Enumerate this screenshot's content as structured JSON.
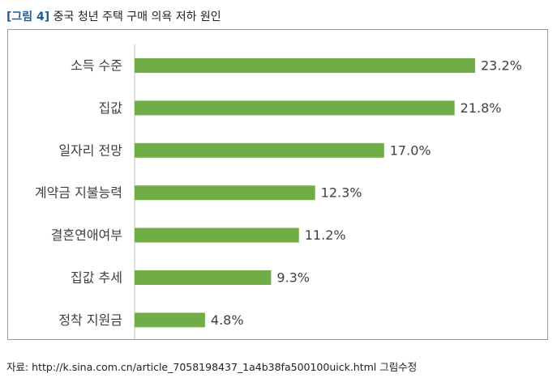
{
  "header": {
    "figure_prefix": "[그림 4]",
    "title": "중국 청년 주택 구매 의욕 저하 원인"
  },
  "source": {
    "text": "자료:  http://k.sina.com.cn/article_7058198437_1a4b38fa500100uick.html  그림수정"
  },
  "colors": {
    "bar": "#70ad47",
    "title_prefix": "#1f5c99",
    "frame": "#9a9a9a"
  },
  "chart_data": {
    "type": "bar",
    "orientation": "horizontal",
    "title": "",
    "xlabel": "",
    "ylabel": "",
    "categories": [
      "소득 수준",
      "집값",
      "일자리 전망",
      "계약금 지불능력",
      "결혼연애여부",
      "집값 추세",
      "정착 지원금"
    ],
    "values": [
      23.2,
      21.8,
      17.0,
      12.3,
      11.2,
      9.3,
      4.8
    ],
    "value_labels": [
      "23.2%",
      "21.8%",
      "17.0%",
      "12.3%",
      "11.2%",
      "9.3%",
      "4.8%"
    ],
    "xlim": [
      0,
      23.2
    ],
    "grid": false,
    "legend": "none"
  }
}
